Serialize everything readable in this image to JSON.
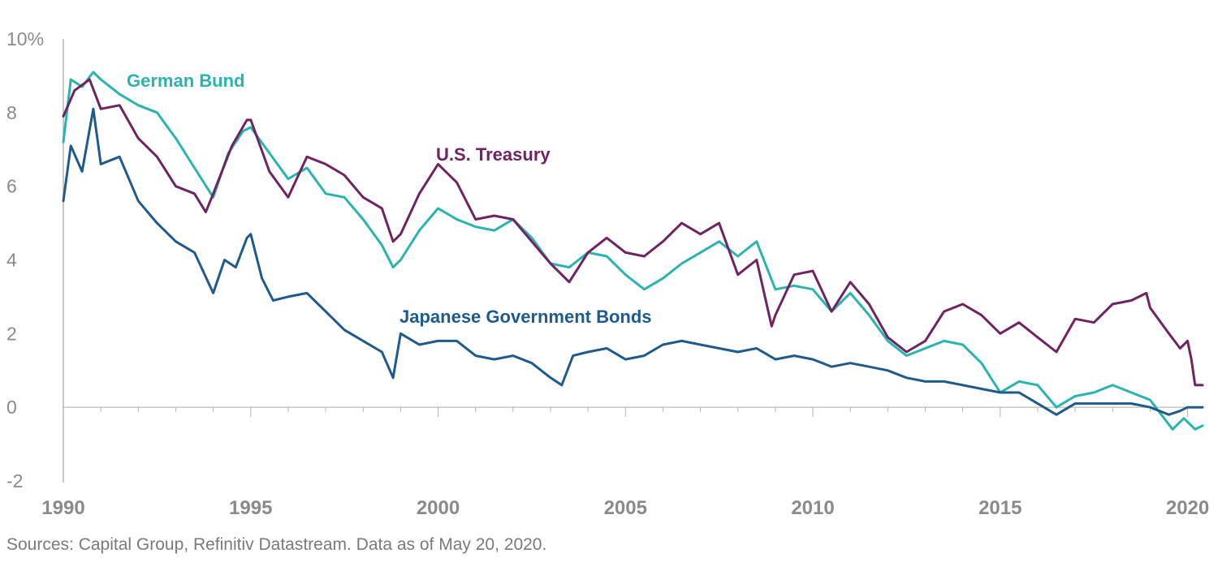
{
  "chart_data": {
    "type": "line",
    "title": "",
    "xlabel": "",
    "ylabel": "",
    "xlim": [
      1990,
      2020.4
    ],
    "ylim": [
      -2,
      10
    ],
    "y_ticks": [
      -2,
      0,
      2,
      4,
      6,
      8,
      10
    ],
    "y_tick_labels": [
      "-2",
      "0",
      "2",
      "4",
      "6",
      "8",
      "10%"
    ],
    "x_ticks": [
      1990,
      1995,
      2000,
      2005,
      2010,
      2015,
      2020
    ],
    "x_tick_labels": [
      "1990",
      "1995",
      "2000",
      "2005",
      "2010",
      "2015",
      "2020"
    ],
    "grid": false,
    "legend": "inline labels",
    "series": [
      {
        "name": "German Bund",
        "label": "German Bund",
        "color": "#2bb3ad",
        "points": [
          [
            1990,
            7.2
          ],
          [
            1990.2,
            8.9
          ],
          [
            1990.5,
            8.7
          ],
          [
            1990.8,
            9.1
          ],
          [
            1991,
            8.9
          ],
          [
            1991.5,
            8.5
          ],
          [
            1992,
            8.2
          ],
          [
            1992.5,
            8.0
          ],
          [
            1993,
            7.3
          ],
          [
            1993.5,
            6.5
          ],
          [
            1994,
            5.7
          ],
          [
            1994.4,
            6.9
          ],
          [
            1994.8,
            7.5
          ],
          [
            1995,
            7.6
          ],
          [
            1995.5,
            6.9
          ],
          [
            1996,
            6.2
          ],
          [
            1996.5,
            6.5
          ],
          [
            1997,
            5.8
          ],
          [
            1997.5,
            5.7
          ],
          [
            1998,
            5.1
          ],
          [
            1998.5,
            4.4
          ],
          [
            1998.8,
            3.8
          ],
          [
            1999,
            4.0
          ],
          [
            1999.5,
            4.8
          ],
          [
            2000,
            5.4
          ],
          [
            2000.5,
            5.1
          ],
          [
            2001,
            4.9
          ],
          [
            2001.5,
            4.8
          ],
          [
            2002,
            5.1
          ],
          [
            2002.5,
            4.6
          ],
          [
            2003,
            3.9
          ],
          [
            2003.5,
            3.8
          ],
          [
            2004,
            4.2
          ],
          [
            2004.5,
            4.1
          ],
          [
            2005,
            3.6
          ],
          [
            2005.5,
            3.2
          ],
          [
            2006,
            3.5
          ],
          [
            2006.5,
            3.9
          ],
          [
            2007,
            4.2
          ],
          [
            2007.5,
            4.5
          ],
          [
            2008,
            4.1
          ],
          [
            2008.5,
            4.5
          ],
          [
            2009,
            3.2
          ],
          [
            2009.5,
            3.3
          ],
          [
            2010,
            3.2
          ],
          [
            2010.5,
            2.6
          ],
          [
            2011,
            3.1
          ],
          [
            2011.5,
            2.5
          ],
          [
            2012,
            1.8
          ],
          [
            2012.5,
            1.4
          ],
          [
            2013,
            1.6
          ],
          [
            2013.5,
            1.8
          ],
          [
            2014,
            1.7
          ],
          [
            2014.5,
            1.2
          ],
          [
            2015,
            0.4
          ],
          [
            2015.5,
            0.7
          ],
          [
            2016,
            0.6
          ],
          [
            2016.5,
            0.0
          ],
          [
            2017,
            0.3
          ],
          [
            2017.5,
            0.4
          ],
          [
            2018,
            0.6
          ],
          [
            2018.5,
            0.4
          ],
          [
            2019,
            0.2
          ],
          [
            2019.3,
            -0.2
          ],
          [
            2019.6,
            -0.6
          ],
          [
            2019.9,
            -0.3
          ],
          [
            2020.2,
            -0.6
          ],
          [
            2020.4,
            -0.5
          ]
        ]
      },
      {
        "name": "U.S. Treasury",
        "label": "U.S. Treasury",
        "color": "#6e2461",
        "points": [
          [
            1990,
            7.9
          ],
          [
            1990.3,
            8.6
          ],
          [
            1990.7,
            8.9
          ],
          [
            1991,
            8.1
          ],
          [
            1991.5,
            8.2
          ],
          [
            1992,
            7.3
          ],
          [
            1992.5,
            6.8
          ],
          [
            1993,
            6.0
          ],
          [
            1993.5,
            5.8
          ],
          [
            1993.8,
            5.3
          ],
          [
            1994,
            5.8
          ],
          [
            1994.5,
            7.1
          ],
          [
            1994.9,
            7.8
          ],
          [
            1995,
            7.8
          ],
          [
            1995.5,
            6.4
          ],
          [
            1996,
            5.7
          ],
          [
            1996.5,
            6.8
          ],
          [
            1997,
            6.6
          ],
          [
            1997.5,
            6.3
          ],
          [
            1998,
            5.7
          ],
          [
            1998.5,
            5.4
          ],
          [
            1998.8,
            4.5
          ],
          [
            1999,
            4.7
          ],
          [
            1999.5,
            5.8
          ],
          [
            2000,
            6.6
          ],
          [
            2000.5,
            6.1
          ],
          [
            2001,
            5.1
          ],
          [
            2001.5,
            5.2
          ],
          [
            2002,
            5.1
          ],
          [
            2002.5,
            4.5
          ],
          [
            2003,
            3.9
          ],
          [
            2003.5,
            3.4
          ],
          [
            2004,
            4.2
          ],
          [
            2004.5,
            4.6
          ],
          [
            2005,
            4.2
          ],
          [
            2005.5,
            4.1
          ],
          [
            2006,
            4.5
          ],
          [
            2006.5,
            5.0
          ],
          [
            2007,
            4.7
          ],
          [
            2007.5,
            5.0
          ],
          [
            2008,
            3.6
          ],
          [
            2008.5,
            4.0
          ],
          [
            2008.9,
            2.2
          ],
          [
            2009,
            2.5
          ],
          [
            2009.5,
            3.6
          ],
          [
            2010,
            3.7
          ],
          [
            2010.5,
            2.6
          ],
          [
            2011,
            3.4
          ],
          [
            2011.5,
            2.8
          ],
          [
            2012,
            1.9
          ],
          [
            2012.5,
            1.5
          ],
          [
            2013,
            1.8
          ],
          [
            2013.5,
            2.6
          ],
          [
            2014,
            2.8
          ],
          [
            2014.5,
            2.5
          ],
          [
            2015,
            2.0
          ],
          [
            2015.5,
            2.3
          ],
          [
            2016,
            1.9
          ],
          [
            2016.5,
            1.5
          ],
          [
            2017,
            2.4
          ],
          [
            2017.5,
            2.3
          ],
          [
            2018,
            2.8
          ],
          [
            2018.5,
            2.9
          ],
          [
            2018.9,
            3.1
          ],
          [
            2019,
            2.7
          ],
          [
            2019.5,
            2.0
          ],
          [
            2019.8,
            1.6
          ],
          [
            2020,
            1.8
          ],
          [
            2020.1,
            1.3
          ],
          [
            2020.2,
            0.6
          ],
          [
            2020.4,
            0.6
          ]
        ]
      },
      {
        "name": "Japanese Government Bonds",
        "label": "Japanese Government Bonds",
        "color": "#1f5a8a",
        "points": [
          [
            1990,
            5.6
          ],
          [
            1990.2,
            7.1
          ],
          [
            1990.5,
            6.4
          ],
          [
            1990.8,
            8.1
          ],
          [
            1991,
            6.6
          ],
          [
            1991.5,
            6.8
          ],
          [
            1992,
            5.6
          ],
          [
            1992.5,
            5.0
          ],
          [
            1993,
            4.5
          ],
          [
            1993.5,
            4.2
          ],
          [
            1994,
            3.1
          ],
          [
            1994.3,
            4.0
          ],
          [
            1994.6,
            3.8
          ],
          [
            1994.9,
            4.6
          ],
          [
            1995,
            4.7
          ],
          [
            1995.3,
            3.5
          ],
          [
            1995.6,
            2.9
          ],
          [
            1996,
            3.0
          ],
          [
            1996.5,
            3.1
          ],
          [
            1997,
            2.6
          ],
          [
            1997.5,
            2.1
          ],
          [
            1998,
            1.8
          ],
          [
            1998.5,
            1.5
          ],
          [
            1998.8,
            0.8
          ],
          [
            1999,
            2.0
          ],
          [
            1999.5,
            1.7
          ],
          [
            2000,
            1.8
          ],
          [
            2000.5,
            1.8
          ],
          [
            2001,
            1.4
          ],
          [
            2001.5,
            1.3
          ],
          [
            2002,
            1.4
          ],
          [
            2002.5,
            1.2
          ],
          [
            2003,
            0.8
          ],
          [
            2003.3,
            0.6
          ],
          [
            2003.6,
            1.4
          ],
          [
            2004,
            1.5
          ],
          [
            2004.5,
            1.6
          ],
          [
            2005,
            1.3
          ],
          [
            2005.5,
            1.4
          ],
          [
            2006,
            1.7
          ],
          [
            2006.5,
            1.8
          ],
          [
            2007,
            1.7
          ],
          [
            2007.5,
            1.6
          ],
          [
            2008,
            1.5
          ],
          [
            2008.5,
            1.6
          ],
          [
            2009,
            1.3
          ],
          [
            2009.5,
            1.4
          ],
          [
            2010,
            1.3
          ],
          [
            2010.5,
            1.1
          ],
          [
            2011,
            1.2
          ],
          [
            2011.5,
            1.1
          ],
          [
            2012,
            1.0
          ],
          [
            2012.5,
            0.8
          ],
          [
            2013,
            0.7
          ],
          [
            2013.5,
            0.7
          ],
          [
            2014,
            0.6
          ],
          [
            2014.5,
            0.5
          ],
          [
            2015,
            0.4
          ],
          [
            2015.5,
            0.4
          ],
          [
            2016,
            0.1
          ],
          [
            2016.5,
            -0.2
          ],
          [
            2017,
            0.1
          ],
          [
            2017.5,
            0.1
          ],
          [
            2018,
            0.1
          ],
          [
            2018.5,
            0.1
          ],
          [
            2019,
            0.0
          ],
          [
            2019.5,
            -0.2
          ],
          [
            2019.8,
            -0.1
          ],
          [
            2020,
            0.0
          ],
          [
            2020.4,
            0.0
          ]
        ]
      }
    ]
  },
  "source_note": "Sources: Capital Group, Refinitiv Datastream. Data as of May 20, 2020.",
  "colors": {
    "german_bund": "#2bb3ad",
    "us_treasury": "#6e2461",
    "jgb": "#1f5a8a",
    "axis": "#b5b5b5",
    "tick_text": "#8a8a8a"
  }
}
